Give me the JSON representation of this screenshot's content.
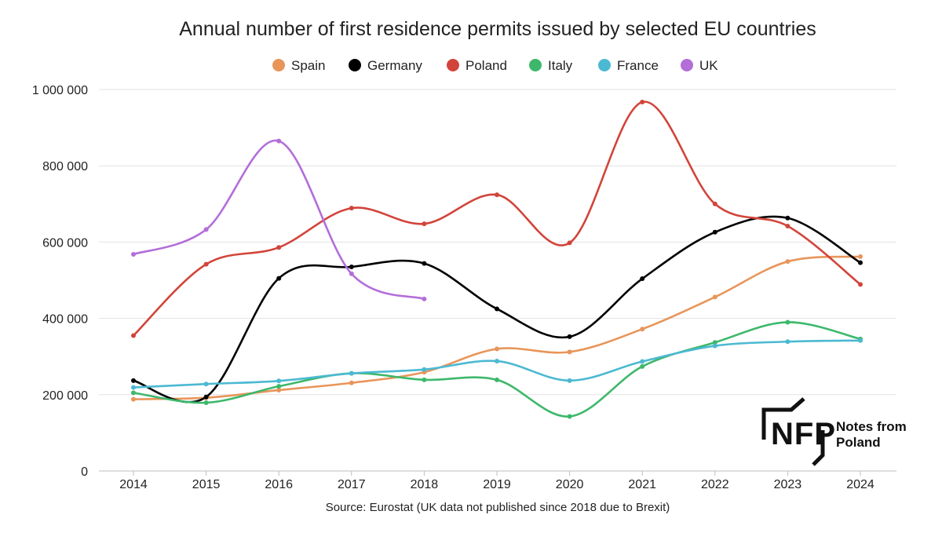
{
  "chart_data": {
    "type": "line",
    "title": "Annual number of first residence permits issued by selected EU countries",
    "xlabel": "",
    "ylabel": "",
    "ylim": [
      0,
      1000000
    ],
    "yticks": [
      0,
      200000,
      400000,
      600000,
      800000,
      1000000
    ],
    "ytick_labels": [
      "0",
      "200 000",
      "400 000",
      "600 000",
      "800 000",
      "1 000 000"
    ],
    "categories": [
      "2014",
      "2015",
      "2016",
      "2017",
      "2018",
      "2019",
      "2020",
      "2021",
      "2022",
      "2023",
      "2024"
    ],
    "legend_position": "top-center",
    "grid": true,
    "series": [
      {
        "name": "Spain",
        "color": "#E8955A",
        "values": [
          188000,
          192000,
          212000,
          231000,
          259000,
          320000,
          312000,
          372000,
          456000,
          549000,
          562000
        ]
      },
      {
        "name": "Germany",
        "color": "#000000",
        "values": [
          237000,
          194000,
          505000,
          535000,
          544000,
          425000,
          352000,
          504000,
          626000,
          663000,
          546000
        ]
      },
      {
        "name": "Poland",
        "color": "#D2443A",
        "values": [
          355000,
          542000,
          586000,
          689000,
          648000,
          724000,
          598000,
          967000,
          700000,
          642000,
          489000
        ]
      },
      {
        "name": "Italy",
        "color": "#3DB86B",
        "values": [
          205000,
          179000,
          222000,
          256000,
          239000,
          239000,
          143000,
          274000,
          337000,
          390000,
          346000
        ]
      },
      {
        "name": "France",
        "color": "#4BB9D2",
        "values": [
          219000,
          228000,
          236000,
          256000,
          266000,
          288000,
          237000,
          287000,
          328000,
          339000,
          342000
        ]
      },
      {
        "name": "UK",
        "color": "#B36ED8",
        "values": [
          568000,
          633000,
          865000,
          517000,
          451000,
          null,
          null,
          null,
          null,
          null,
          null
        ]
      }
    ]
  },
  "source": "Source: Eurostat (UK data not published since 2018 due to Brexit)",
  "logo": {
    "mark": "NFP",
    "line1": "Notes from",
    "line2": "Poland"
  }
}
